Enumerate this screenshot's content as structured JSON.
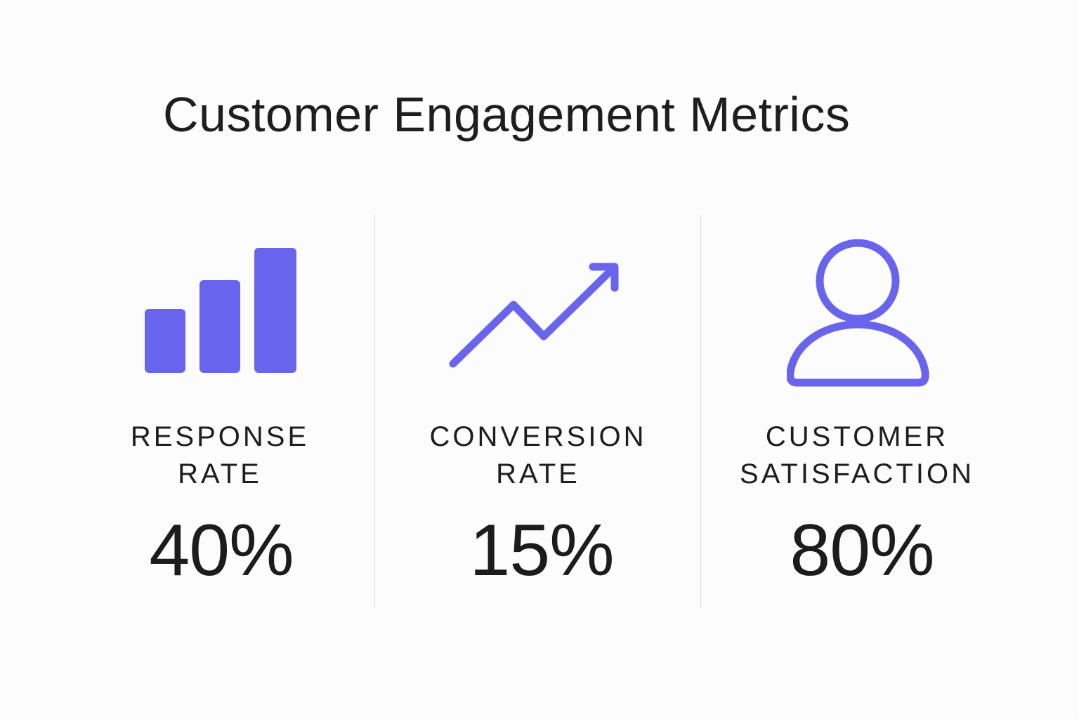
{
  "title": "Customer Engagement Metrics",
  "accent_color": "#6865ec",
  "metrics": [
    {
      "icon": "bar-chart-icon",
      "label_line1": "RESPONSE",
      "label_line2": "RATE",
      "value": "40%"
    },
    {
      "icon": "trend-up-arrow-icon",
      "label_line1": "CONVERSION",
      "label_line2": "RATE",
      "value": "15%"
    },
    {
      "icon": "user-icon",
      "label_line1": "CUSTOMER",
      "label_line2": "SATISFACTION",
      "value": "80%"
    }
  ]
}
